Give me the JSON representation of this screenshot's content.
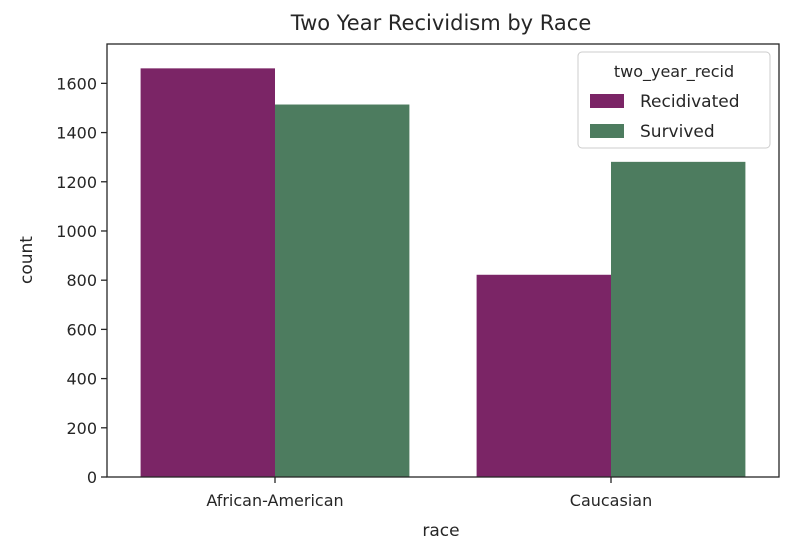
{
  "chart_data": {
    "type": "bar",
    "title": "Two Year Recividism by Race",
    "xlabel": "race",
    "ylabel": "count",
    "categories": [
      "African-American",
      "Caucasian"
    ],
    "series": [
      {
        "name": "Recidivated",
        "values": [
          1661,
          822
        ]
      },
      {
        "name": "Survived",
        "values": [
          1514,
          1281
        ]
      }
    ],
    "colors": [
      "#7b2566",
      "#4d7c5f"
    ],
    "ylim": [
      0,
      1760
    ],
    "yticks": [
      0,
      200,
      400,
      600,
      800,
      1000,
      1200,
      1400,
      1600
    ],
    "grid": false,
    "legend": {
      "title": "two_year_recid",
      "placement": "top-right"
    }
  }
}
